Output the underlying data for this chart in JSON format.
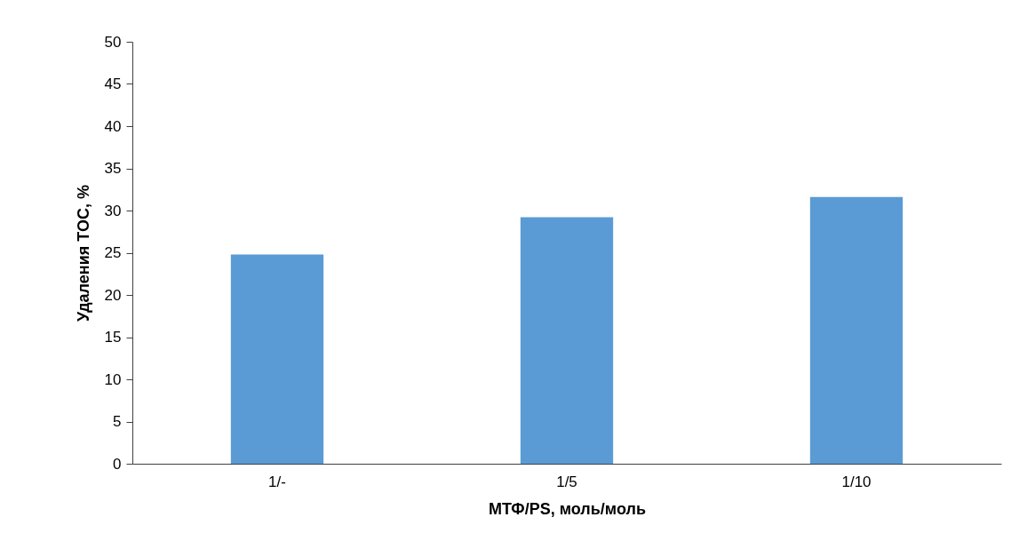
{
  "chart_data": {
    "type": "bar",
    "xlabel": "МТФ/PS, моль/моль",
    "ylabel": "Удаления TOC, %",
    "categories": [
      "1/-",
      "1/5",
      "1/10"
    ],
    "values": [
      24.8,
      29.2,
      31.6
    ],
    "color": "#5b9bd5",
    "ylim": [
      0,
      50
    ],
    "yticks": [
      0,
      5,
      10,
      15,
      20,
      25,
      30,
      35,
      40,
      45,
      50
    ],
    "grid": false
  }
}
